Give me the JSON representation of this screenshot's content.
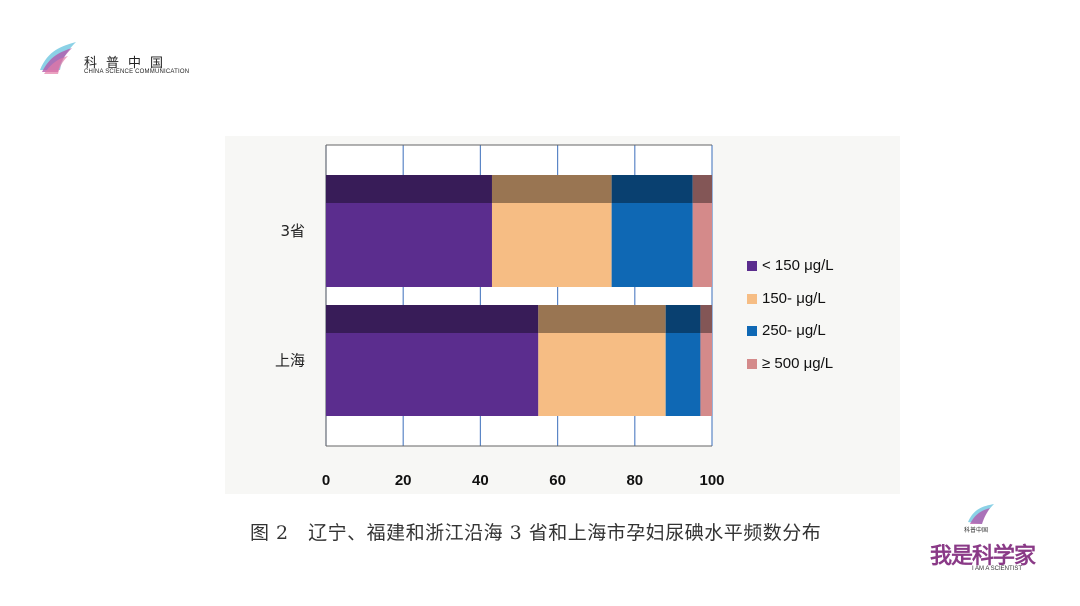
{
  "brand": {
    "name_cn": "科普中国",
    "name_en": "CHINA SCIENCE COMMUNICATION",
    "secondary_cn": "我是科学家",
    "secondary_en": "I AM A SCIENTIST",
    "secondary_small_cn": "科普中国"
  },
  "caption": "图 2　辽宁、福建和浙江沿海 3 省和上海市孕妇尿碘水平频数分布",
  "chart_data": {
    "type": "bar",
    "orientation": "horizontal",
    "stacked": true,
    "categories": [
      "3省",
      "上海"
    ],
    "series": [
      {
        "name": "< 150  μg/L",
        "values": [
          43,
          55
        ],
        "color": "#5b2d8e"
      },
      {
        "name": "150-  μg/L",
        "values": [
          31,
          33
        ],
        "color": "#f6bd84"
      },
      {
        "name": "250-  μg/L",
        "values": [
          21,
          9
        ],
        "color": "#0f68b4"
      },
      {
        "name": "≥ 500  μg/L",
        "values": [
          5,
          3
        ],
        "color": "#d48a8a"
      }
    ],
    "x_ticks": [
      "0",
      "20",
      "40",
      "60",
      "80",
      "100"
    ],
    "xlim": [
      0,
      100
    ],
    "grid": "vertical",
    "legend": "right",
    "style": "3d"
  }
}
